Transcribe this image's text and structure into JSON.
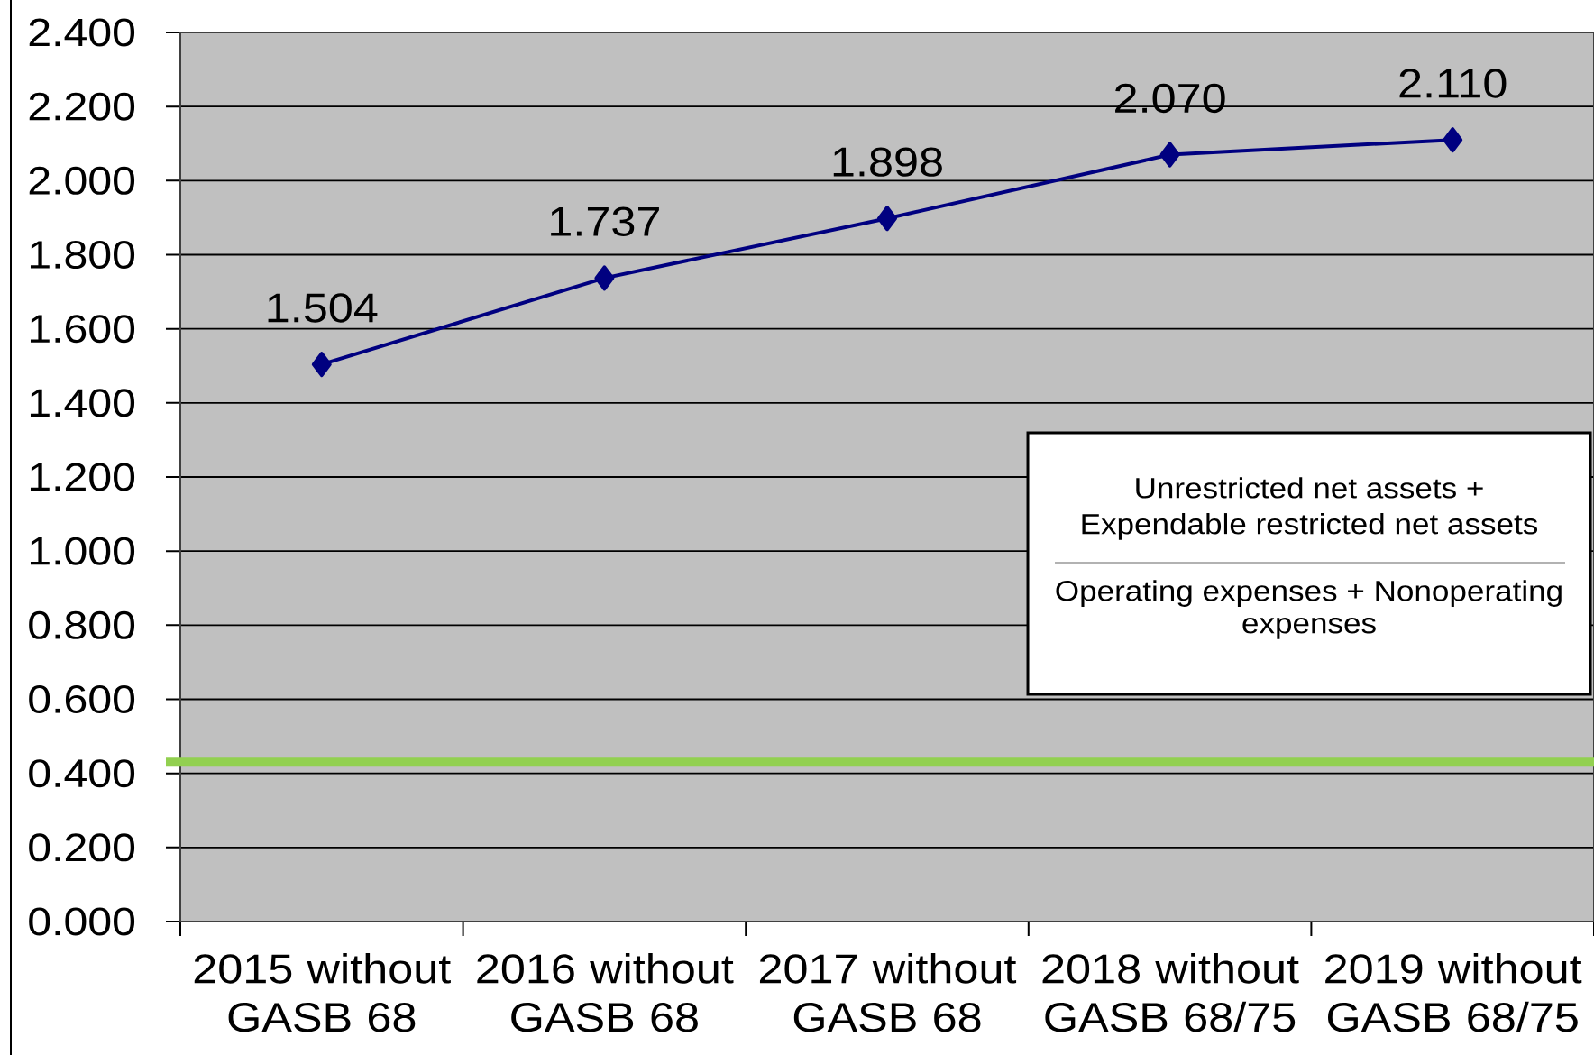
{
  "chart_data": {
    "type": "line",
    "categories": [
      "2015 without GASB 68",
      "2016 without GASB 68",
      "2017 without GASB 68",
      "2018 without GASB 68/75",
      "2019 without GASB 68/75"
    ],
    "values": [
      1.504,
      1.737,
      1.898,
      2.07,
      2.11
    ],
    "value_labels": [
      "1.504",
      "1.737",
      "1.898",
      "2.070",
      "2.110"
    ],
    "color": "#000080",
    "marker": "diamond",
    "ylim": [
      0,
      2.4
    ],
    "yticks": [
      {
        "value": 0,
        "label": "0.000"
      },
      {
        "value": 0.2,
        "label": "0.200"
      },
      {
        "value": 0.4,
        "label": "0.400"
      },
      {
        "value": 0.6,
        "label": "0.600"
      },
      {
        "value": 0.8,
        "label": "0.800"
      },
      {
        "value": 1.0,
        "label": "1.000"
      },
      {
        "value": 1.2,
        "label": "1.200"
      },
      {
        "value": 1.4,
        "label": "1.400"
      },
      {
        "value": 1.6,
        "label": "1.600"
      },
      {
        "value": 1.8,
        "label": "1.800"
      },
      {
        "value": 2.0,
        "label": "2.000"
      },
      {
        "value": 2.2,
        "label": "2.200"
      },
      {
        "value": 2.4,
        "label": "2.400"
      }
    ],
    "grid": "y",
    "ref_lines": [
      {
        "axis": "y",
        "value": 0.43,
        "color": "#92d050"
      }
    ],
    "annotations": [
      "Unrestricted net assets + Expendable restricted net assets",
      "Operating expenses + Nonoperating expenses"
    ]
  }
}
